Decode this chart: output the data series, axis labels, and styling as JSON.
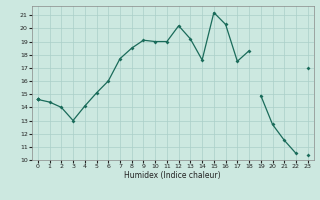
{
  "x_values": [
    0,
    1,
    2,
    3,
    4,
    5,
    6,
    7,
    8,
    9,
    10,
    11,
    12,
    13,
    14,
    15,
    16,
    17,
    18,
    19,
    20,
    21,
    22,
    23
  ],
  "line_main": [
    14.6,
    14.4,
    14.0,
    13.0,
    14.1,
    15.1,
    16.0,
    17.7,
    18.5,
    19.1,
    19.0,
    19.0,
    20.2,
    19.2,
    17.6,
    21.2,
    20.3,
    17.5,
    18.3,
    null,
    null,
    null,
    null,
    null
  ],
  "line_mid": [
    14.6,
    null,
    null,
    null,
    null,
    null,
    null,
    null,
    null,
    null,
    null,
    null,
    null,
    null,
    null,
    null,
    null,
    null,
    null,
    14.9,
    12.7,
    11.5,
    10.5,
    null
  ],
  "line_low": [
    14.6,
    null,
    null,
    null,
    null,
    null,
    null,
    null,
    null,
    null,
    null,
    null,
    null,
    null,
    null,
    null,
    null,
    null,
    null,
    null,
    null,
    null,
    null,
    10.4
  ],
  "line_high": [
    14.6,
    null,
    null,
    null,
    null,
    null,
    null,
    null,
    null,
    null,
    null,
    null,
    null,
    null,
    null,
    null,
    null,
    null,
    null,
    null,
    null,
    null,
    null,
    17.0
  ],
  "bg_color": "#cce8e0",
  "grid_color": "#aacfc8",
  "line_color": "#1a6b5a",
  "xlabel": "Humidex (Indice chaleur)",
  "xlim": [
    -0.5,
    23.5
  ],
  "ylim": [
    10,
    21.7
  ],
  "yticks": [
    10,
    11,
    12,
    13,
    14,
    15,
    16,
    17,
    18,
    19,
    20,
    21
  ],
  "xticks": [
    0,
    1,
    2,
    3,
    4,
    5,
    6,
    7,
    8,
    9,
    10,
    11,
    12,
    13,
    14,
    15,
    16,
    17,
    18,
    19,
    20,
    21,
    22,
    23
  ]
}
